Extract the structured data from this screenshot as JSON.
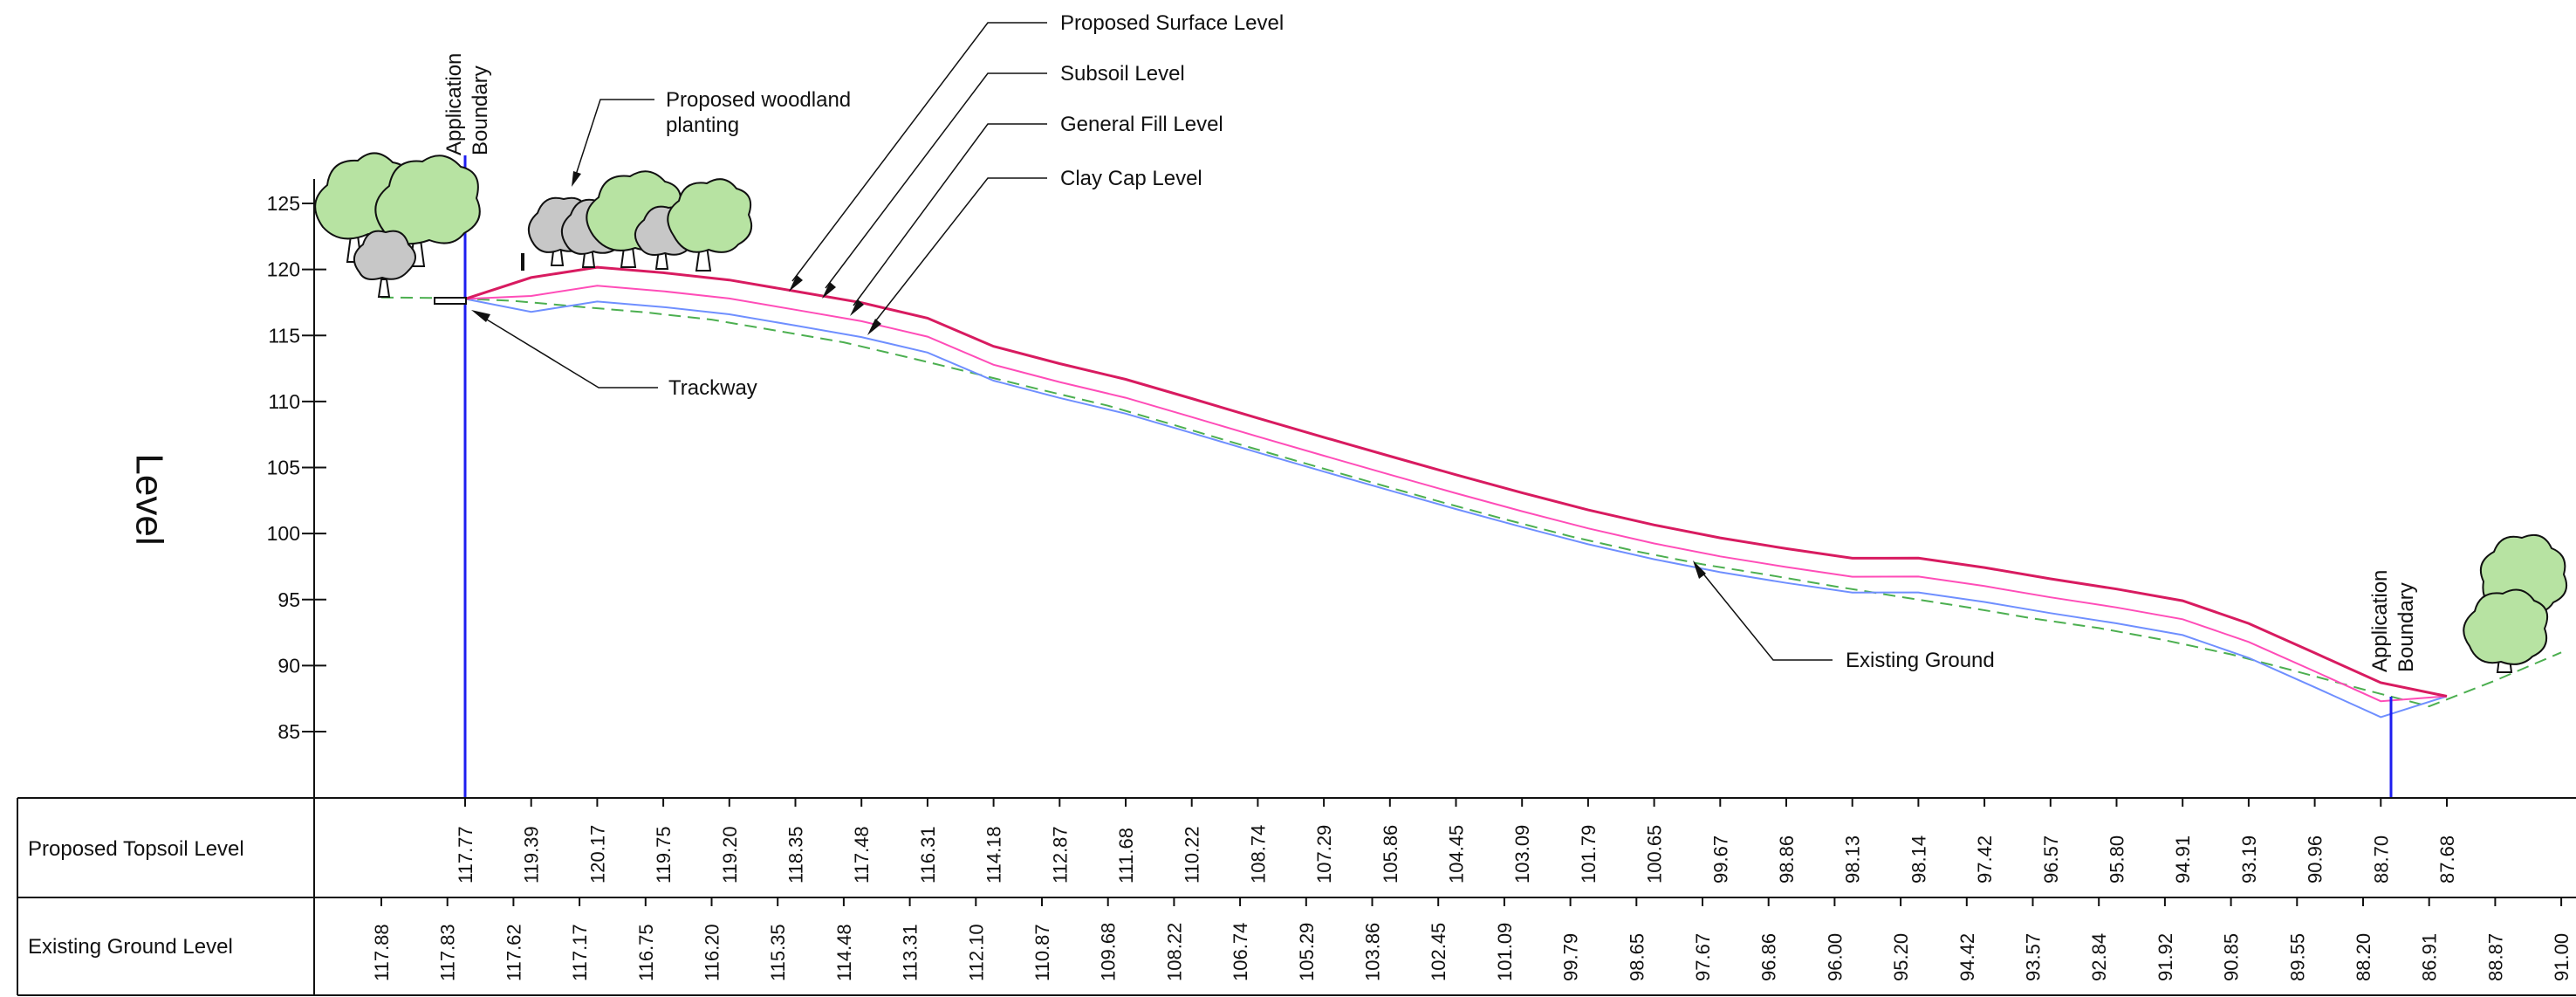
{
  "drawing": {
    "y_axis_title": "Level",
    "y_ticks": [
      85,
      90,
      95,
      100,
      105,
      110,
      115,
      120,
      125
    ],
    "boundary_label_line1": "Application",
    "boundary_label_line2": "Boundary"
  },
  "callouts": {
    "proposed_surface": "Proposed Surface Level",
    "subsoil": "Subsoil Level",
    "general_fill": "General Fill Level",
    "clay_cap": "Clay Cap Level",
    "woodland_line1": "Proposed woodland",
    "woodland_line2": "planting",
    "trackway": "Trackway",
    "existing_ground": "Existing Ground"
  },
  "table": {
    "proposed_label": "Proposed Topsoil Level",
    "existing_label": "Existing Ground Level",
    "proposed_values": [
      "117.77",
      "119.39",
      "120.17",
      "119.75",
      "119.20",
      "118.35",
      "117.48",
      "116.31",
      "114.18",
      "112.87",
      "111.68",
      "110.22",
      "108.74",
      "107.29",
      "105.86",
      "104.45",
      "103.09",
      "101.79",
      "100.65",
      "99.67",
      "98.86",
      "98.13",
      "98.14",
      "97.42",
      "96.57",
      "95.80",
      "94.91",
      "93.19",
      "90.96",
      "88.70",
      "87.68"
    ],
    "existing_values": [
      "117.88",
      "117.83",
      "117.62",
      "117.17",
      "116.75",
      "116.20",
      "115.35",
      "114.48",
      "113.31",
      "112.10",
      "110.87",
      "109.68",
      "108.22",
      "106.74",
      "105.29",
      "103.86",
      "102.45",
      "101.09",
      "99.79",
      "98.65",
      "97.67",
      "96.86",
      "96.00",
      "95.20",
      "94.42",
      "93.57",
      "92.84",
      "91.92",
      "90.85",
      "89.55",
      "88.20",
      "86.91",
      "88.87",
      "91.00"
    ]
  },
  "chart_data": {
    "type": "line",
    "xlabel": "",
    "ylabel": "Level",
    "ylim": [
      80,
      130
    ],
    "series": [
      {
        "name": "Proposed Surface Level",
        "color": "#d81b60",
        "values": [
          117.77,
          119.39,
          120.17,
          119.75,
          119.2,
          118.35,
          117.48,
          116.31,
          114.18,
          112.87,
          111.68,
          110.22,
          108.74,
          107.29,
          105.86,
          104.45,
          103.09,
          101.79,
          100.65,
          99.67,
          98.86,
          98.13,
          98.14,
          97.42,
          96.57,
          95.8,
          94.91,
          93.19,
          90.96,
          88.7,
          87.68
        ]
      },
      {
        "name": "Existing Ground",
        "color": "#4caf50",
        "values": [
          117.88,
          117.83,
          117.62,
          117.17,
          116.75,
          116.2,
          115.35,
          114.48,
          113.31,
          112.1,
          110.87,
          109.68,
          108.22,
          106.74,
          105.29,
          103.86,
          102.45,
          101.09,
          99.79,
          98.65,
          97.67,
          96.86,
          96.0,
          95.2,
          94.42,
          93.57,
          92.84,
          91.92,
          90.85,
          89.55,
          88.2,
          86.91,
          88.87,
          91.0
        ]
      }
    ],
    "colors": {
      "proposed_surface": "#d81b60",
      "subsoil": "#ff4db8",
      "general_fill": "#6f8fff",
      "clay_cap": "#4caf50",
      "existing_ground": "#4caf50",
      "boundary": "#1e1ef0",
      "tree_green": "#b7e3a2",
      "tree_grey": "#c7c7c7"
    }
  }
}
